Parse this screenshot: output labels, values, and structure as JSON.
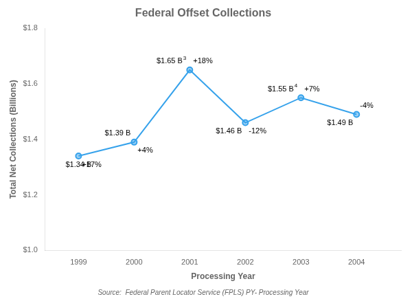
{
  "chart_data": {
    "type": "line",
    "title": "Federal Offset Collections",
    "xlabel": "Processing Year",
    "ylabel": "Total Net Collections (Billions)",
    "source": "Source:  Federal Parent Locator Service (FPLS) PY- Processing Year",
    "x": [
      1999,
      2000,
      2001,
      2002,
      2003,
      2004
    ],
    "values": [
      1.34,
      1.39,
      1.65,
      1.46,
      1.55,
      1.49
    ],
    "data_labels": true,
    "value_labels": [
      "$1.34 B",
      "$1.39 B",
      "$1.65 B",
      "$1.46 B",
      "$1.55 B",
      "$1.49 B"
    ],
    "annotations": [
      {
        "x": 1999,
        "text": "+17%"
      },
      {
        "x": 2000,
        "text": "+4%"
      },
      {
        "x": 2001,
        "text": "+18%"
      },
      {
        "x": 2002,
        "text": "-12%"
      },
      {
        "x": 2003,
        "text": "+7%"
      },
      {
        "x": 2004,
        "text": "-4%"
      }
    ],
    "footnote_marks": [
      {
        "x": 2001,
        "text": "3"
      },
      {
        "x": 2003,
        "text": "4"
      }
    ],
    "marker": "circle",
    "xlim": [
      1998.4,
      2004.8
    ],
    "xticks": [
      1999,
      2000,
      2001,
      2002,
      2003,
      2004
    ],
    "ylim": [
      1.0,
      1.8
    ],
    "yticks": [
      {
        "value": 1.0,
        "label": "$1.0"
      },
      {
        "value": 1.2,
        "label": "$1.2"
      },
      {
        "value": 1.4,
        "label": "$1.4"
      },
      {
        "value": 1.6,
        "label": "$1.6"
      },
      {
        "value": 1.8,
        "label": "$1.8"
      }
    ],
    "grid": false
  }
}
